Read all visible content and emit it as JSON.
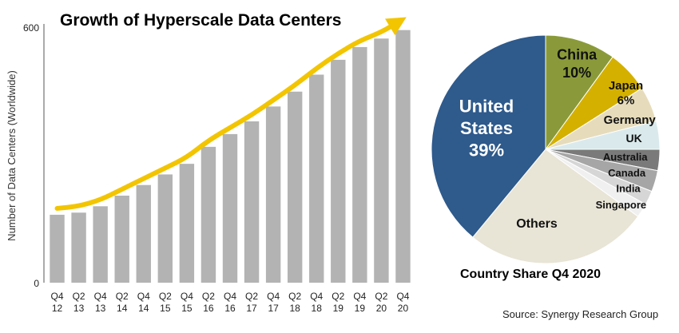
{
  "source": "Source: Synergy Research Group",
  "chart_data": [
    {
      "type": "bar",
      "title": "Growth of Hyperscale Data Centers",
      "xlabel": "",
      "ylabel": "Number of Data Centers (Worldwide)",
      "ylim": [
        0,
        600
      ],
      "yticks": [
        "0",
        "600"
      ],
      "bar_color": "#b3b3b3",
      "trend_color": "#f2c500",
      "grid": false,
      "categories": [
        [
          "Q4",
          "12"
        ],
        [
          "Q2",
          "13"
        ],
        [
          "Q4",
          "13"
        ],
        [
          "Q2",
          "14"
        ],
        [
          "Q4",
          "14"
        ],
        [
          "Q2",
          "15"
        ],
        [
          "Q4",
          "15"
        ],
        [
          "Q2",
          "16"
        ],
        [
          "Q4",
          "16"
        ],
        [
          "Q2",
          "17"
        ],
        [
          "Q4",
          "17"
        ],
        [
          "Q2",
          "18"
        ],
        [
          "Q4",
          "18"
        ],
        [
          "Q2",
          "19"
        ],
        [
          "Q4",
          "19"
        ],
        [
          "Q2",
          "20"
        ],
        [
          "Q4",
          "20"
        ]
      ],
      "values": [
        160,
        165,
        180,
        205,
        230,
        255,
        280,
        320,
        350,
        380,
        415,
        450,
        490,
        525,
        555,
        575,
        595
      ]
    },
    {
      "type": "pie",
      "title": "Country Share Q4 2020",
      "slices": [
        {
          "label": "United States",
          "value": 39,
          "display": [
            "United",
            "States",
            "39%"
          ],
          "color": "#2e5a8c",
          "text_color": "#ffffff"
        },
        {
          "label": "China",
          "value": 10,
          "display": [
            "China",
            "10%"
          ],
          "color": "#8a9a3a",
          "text_color": "#111111"
        },
        {
          "label": "Japan",
          "value": 6,
          "display": [
            "Japan",
            "6%"
          ],
          "color": "#d4b000",
          "text_color": "#111111"
        },
        {
          "label": "Germany",
          "value": 5,
          "display": [
            "Germany"
          ],
          "color": "#e6dcbc",
          "text_color": "#111111"
        },
        {
          "label": "UK",
          "value": 4,
          "display": [
            "UK"
          ],
          "color": "#daeaec",
          "text_color": "#111111"
        },
        {
          "label": "Australia",
          "value": 3,
          "display": [
            "Australia"
          ],
          "color": "#7a7a7a",
          "text_color": "#111111"
        },
        {
          "label": "Canada",
          "value": 3,
          "display": [
            "Canada"
          ],
          "color": "#a6a6a6",
          "text_color": "#111111"
        },
        {
          "label": "India",
          "value": 2,
          "display": [
            "India"
          ],
          "color": "#d6d6d6",
          "text_color": "#111111"
        },
        {
          "label": "Singapore",
          "value": 2,
          "display": [
            "Singapore"
          ],
          "color": "#f0f0f0",
          "text_color": "#111111"
        },
        {
          "label": "Others",
          "value": 26,
          "display": [
            "Others"
          ],
          "color": "#e8e4d6",
          "text_color": "#111111"
        }
      ]
    }
  ]
}
